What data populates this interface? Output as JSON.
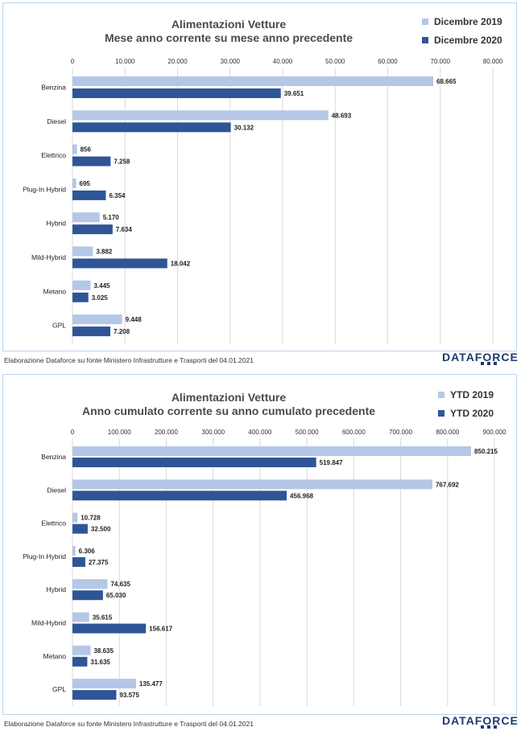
{
  "colors": {
    "series_2019": "#b4c7e7",
    "series_2020": "#2f5597",
    "grid": "#d9d9d9",
    "border": "#bcd3ea"
  },
  "footer": {
    "source_top": "Elaborazione Dataforce su fonte Ministero Infrastrutture e Trasporti del 04.01.2021",
    "source_bottom": "Elaborazione Dataforce su fonte Ministero Infrastrutture e Trasporti del 04.01.2021",
    "brand_top": "DATAFORCE",
    "brand_bottom": "DATAFORCE"
  },
  "chart_data": [
    {
      "type": "bar",
      "orientation": "horizontal",
      "title": "Alimentazioni Vetture",
      "subtitle": "Mese anno corrente su mese anno precedente",
      "categories": [
        "Benzina",
        "Diesel",
        "Elettrico",
        "Plug-In Hybrid",
        "Hybrid",
        "Mild-Hybrid",
        "Metano",
        "GPL"
      ],
      "series": [
        {
          "name": "Dicembre 2019",
          "values": [
            68665,
            48693,
            856,
            695,
            5170,
            3882,
            3445,
            9448
          ],
          "labels": [
            "68.665",
            "48.693",
            "856",
            "695",
            "5.170",
            "3.882",
            "3.445",
            "9.448"
          ]
        },
        {
          "name": "Dicembre 2020",
          "values": [
            39651,
            30132,
            7258,
            6354,
            7634,
            18042,
            3025,
            7208
          ],
          "labels": [
            "39.651",
            "30.132",
            "7.258",
            "6.354",
            "7.634",
            "18.042",
            "3.025",
            "7.208"
          ]
        }
      ],
      "xlim": [
        0,
        80000
      ],
      "ticks": [
        0,
        10000,
        20000,
        30000,
        40000,
        50000,
        60000,
        70000,
        80000
      ],
      "tick_labels": [
        "0",
        "10.000",
        "20.000",
        "30.000",
        "40.000",
        "50.000",
        "60.000",
        "70.000",
        "80.000"
      ],
      "grid": true,
      "legend": "top-right"
    },
    {
      "type": "bar",
      "orientation": "horizontal",
      "title": "Alimentazioni Vetture",
      "subtitle": "Anno cumulato corrente su anno cumulato precedente",
      "categories": [
        "Benzina",
        "Diesel",
        "Elettrico",
        "Plug-In Hybrid",
        "Hybrid",
        "Mild-Hybrid",
        "Metano",
        "GPL"
      ],
      "series": [
        {
          "name": "YTD 2019",
          "values": [
            850215,
            767692,
            10728,
            6306,
            74635,
            35615,
            38635,
            135477
          ],
          "labels": [
            "850.215",
            "767.692",
            "10.728",
            "6.306",
            "74.635",
            "35.615",
            "38.635",
            "135.477"
          ]
        },
        {
          "name": "YTD 2020",
          "values": [
            519847,
            456968,
            32500,
            27375,
            65030,
            156617,
            31635,
            93575
          ],
          "labels": [
            "519.847",
            "456.968",
            "32.500",
            "27.375",
            "65.030",
            "156.617",
            "31.635",
            "93.575"
          ]
        }
      ],
      "xlim": [
        0,
        900000
      ],
      "ticks": [
        0,
        100000,
        200000,
        300000,
        400000,
        500000,
        600000,
        700000,
        800000,
        900000
      ],
      "tick_labels": [
        "0",
        "100.000",
        "200.000",
        "300.000",
        "400.000",
        "500.000",
        "600.000",
        "700.000",
        "800.000",
        "900.000"
      ],
      "grid": true,
      "legend": "top-right"
    }
  ]
}
